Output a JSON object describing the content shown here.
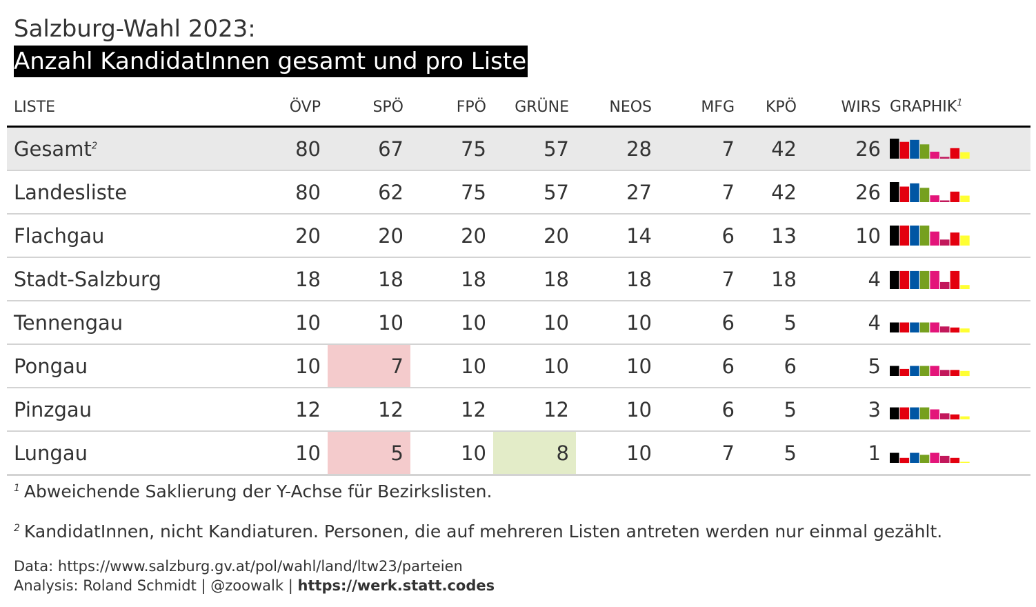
{
  "title": "Salzburg-Wahl 2023:",
  "subtitle": "Anzahl KandidatInnen gesamt und pro Liste",
  "chart_data": {
    "type": "table",
    "header_label": "LISTE",
    "graph_label": "GRAPHIK",
    "graph_note_ref": "1",
    "columns": [
      "ÖVP",
      "SPÖ",
      "FPÖ",
      "GRÜNE",
      "NEOS",
      "MFG",
      "KPÖ",
      "WIRS"
    ],
    "party_colors": [
      "#000000",
      "#e3000f",
      "#0056a4",
      "#76a01f",
      "#e3157a",
      "#c2185b",
      "#e3000f",
      "#ffff33"
    ],
    "rows": [
      {
        "name": "Gesamt",
        "note_ref": "2",
        "values": [
          80,
          67,
          75,
          57,
          28,
          7,
          42,
          26
        ]
      },
      {
        "name": "Landesliste",
        "note_ref": "",
        "values": [
          80,
          62,
          75,
          57,
          27,
          7,
          42,
          26
        ]
      },
      {
        "name": "Flachgau",
        "note_ref": "",
        "values": [
          20,
          20,
          20,
          20,
          14,
          6,
          13,
          10
        ]
      },
      {
        "name": "Stadt-Salzburg",
        "note_ref": "",
        "values": [
          18,
          18,
          18,
          18,
          18,
          7,
          18,
          4
        ]
      },
      {
        "name": "Tennengau",
        "note_ref": "",
        "values": [
          10,
          10,
          10,
          10,
          10,
          6,
          5,
          4
        ]
      },
      {
        "name": "Pongau",
        "note_ref": "",
        "values": [
          10,
          7,
          10,
          10,
          10,
          6,
          6,
          5
        ]
      },
      {
        "name": "Pinzgau",
        "note_ref": "",
        "values": [
          12,
          12,
          12,
          12,
          10,
          6,
          5,
          3
        ]
      },
      {
        "name": "Lungau",
        "note_ref": "",
        "values": [
          10,
          5,
          10,
          8,
          10,
          7,
          5,
          1
        ]
      }
    ],
    "highlights": [
      {
        "row": 5,
        "col": 1,
        "color": "red"
      },
      {
        "row": 7,
        "col": 1,
        "color": "red"
      },
      {
        "row": 7,
        "col": 3,
        "color": "green"
      }
    ],
    "sparkline_scale": {
      "landeslisten_max": 80,
      "bezirkslisten_max": 20
    }
  },
  "footnotes": [
    {
      "ref": "1",
      "text": "Abweichende Saklierung der Y-Achse für Bezirkslisten."
    },
    {
      "ref": "2",
      "text": "KandidatInnen, nicht Kandiaturen. Personen, die auf mehreren Listen antreten werden nur einmal gezählt."
    }
  ],
  "source": {
    "data_line": "Data: https://www.salzburg.gv.at/pol/wahl/land/ltw23/parteien",
    "analysis_prefix": "Analysis: Roland Schmidt | @zoowalk | ",
    "analysis_link": "https://werk.statt.codes"
  }
}
